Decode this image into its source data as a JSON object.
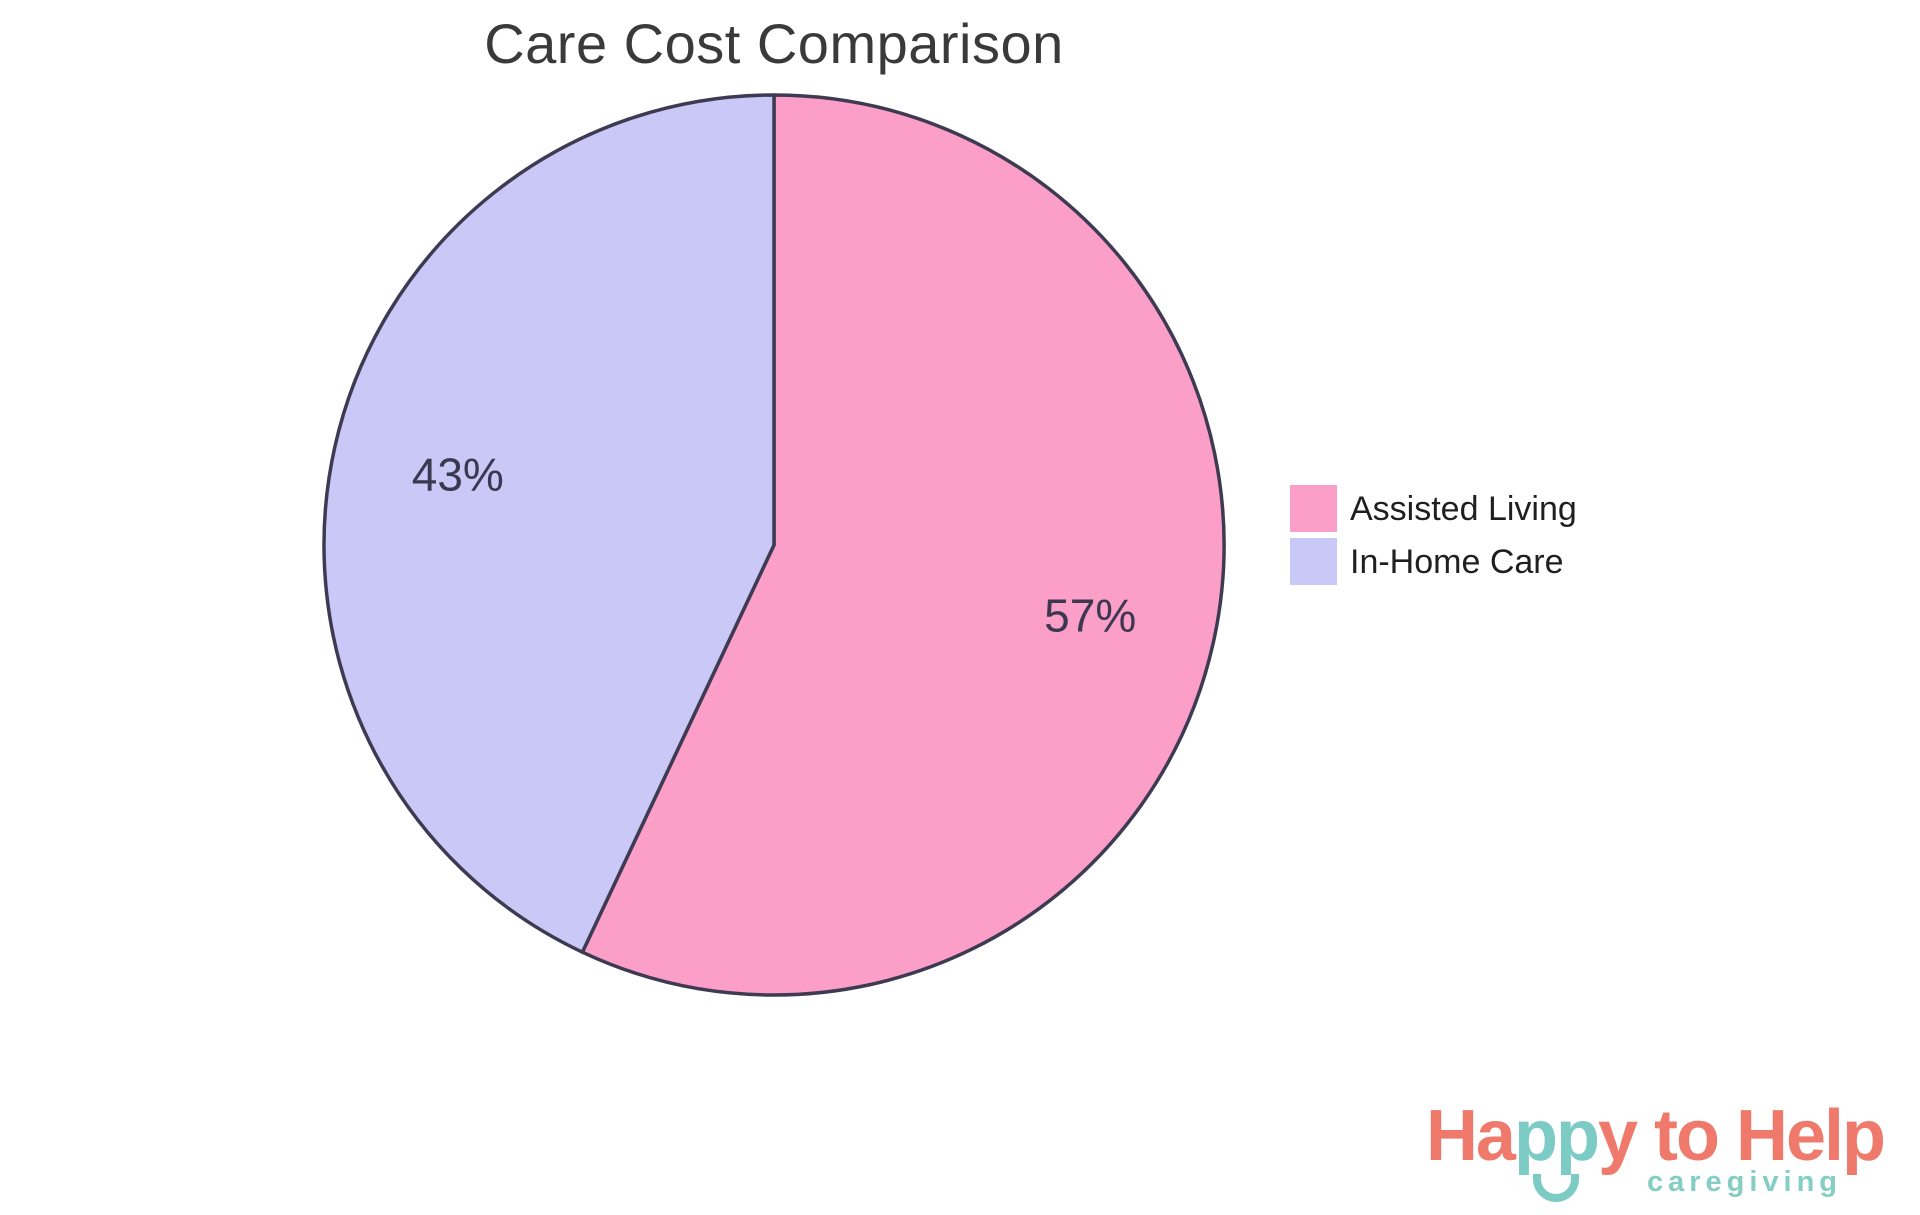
{
  "chart_data": {
    "type": "pie",
    "title": "Care Cost Comparison",
    "labels": [
      "Assisted Living",
      "In-Home Care"
    ],
    "values": [
      57,
      43
    ],
    "slice_label_texts": [
      "57%",
      "43%"
    ],
    "colors": [
      "#FB9FC9",
      "#C9C8F7"
    ],
    "slice_border_color": "#3E3A52",
    "label_color": "#3C3850",
    "title_color": "#3A3A3A",
    "start_angle": "12-oclock",
    "direction": "clockwise",
    "legend_position": "right-middle"
  },
  "legend": {
    "text_color": "#1F1F1F",
    "items": [
      {
        "label": "Assisted Living",
        "color": "#FB9FC9"
      },
      {
        "label": "In-Home Care",
        "color": "#C9C8F7"
      }
    ]
  },
  "logo": {
    "segments": [
      {
        "text": "Ha",
        "color": "#EF7A6C"
      },
      {
        "text": "pp",
        "color": "#7DCBC5"
      },
      {
        "text": "y",
        "color": "#EF7A6C"
      },
      {
        "text": " to Help",
        "color": "#EF7A6C"
      }
    ],
    "smile_color": "#7DCBC5",
    "tagline": "caregiving",
    "tagline_color": "#85CEC4"
  }
}
